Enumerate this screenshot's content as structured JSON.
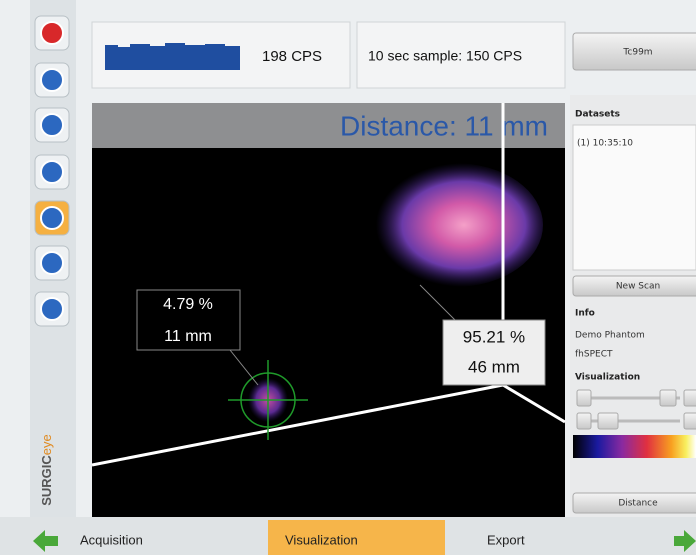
{
  "header": {
    "cps": "198 CPS",
    "sample": "10 sec sample: 150 CPS",
    "isotope": "Tc99m"
  },
  "view": {
    "distance": "Distance: 11 mm",
    "labels": [
      {
        "percent": "4.79 %",
        "depth": "11 mm"
      },
      {
        "percent": "95.21 %",
        "depth": "46 mm"
      }
    ]
  },
  "sidebar": {
    "logo_brand": "SURGIC",
    "logo_suffix": "eye"
  },
  "panel": {
    "datasets_title": "Datasets",
    "datasets": [
      "(1) 10:35:10"
    ],
    "new_scan": "New Scan",
    "info_title": "Info",
    "info": [
      "Demo Phantom",
      "fhSPECT"
    ],
    "visualization_title": "Visualization",
    "distance_button": "Distance"
  },
  "tabs": [
    "Acquisition",
    "Visualization",
    "Export"
  ]
}
